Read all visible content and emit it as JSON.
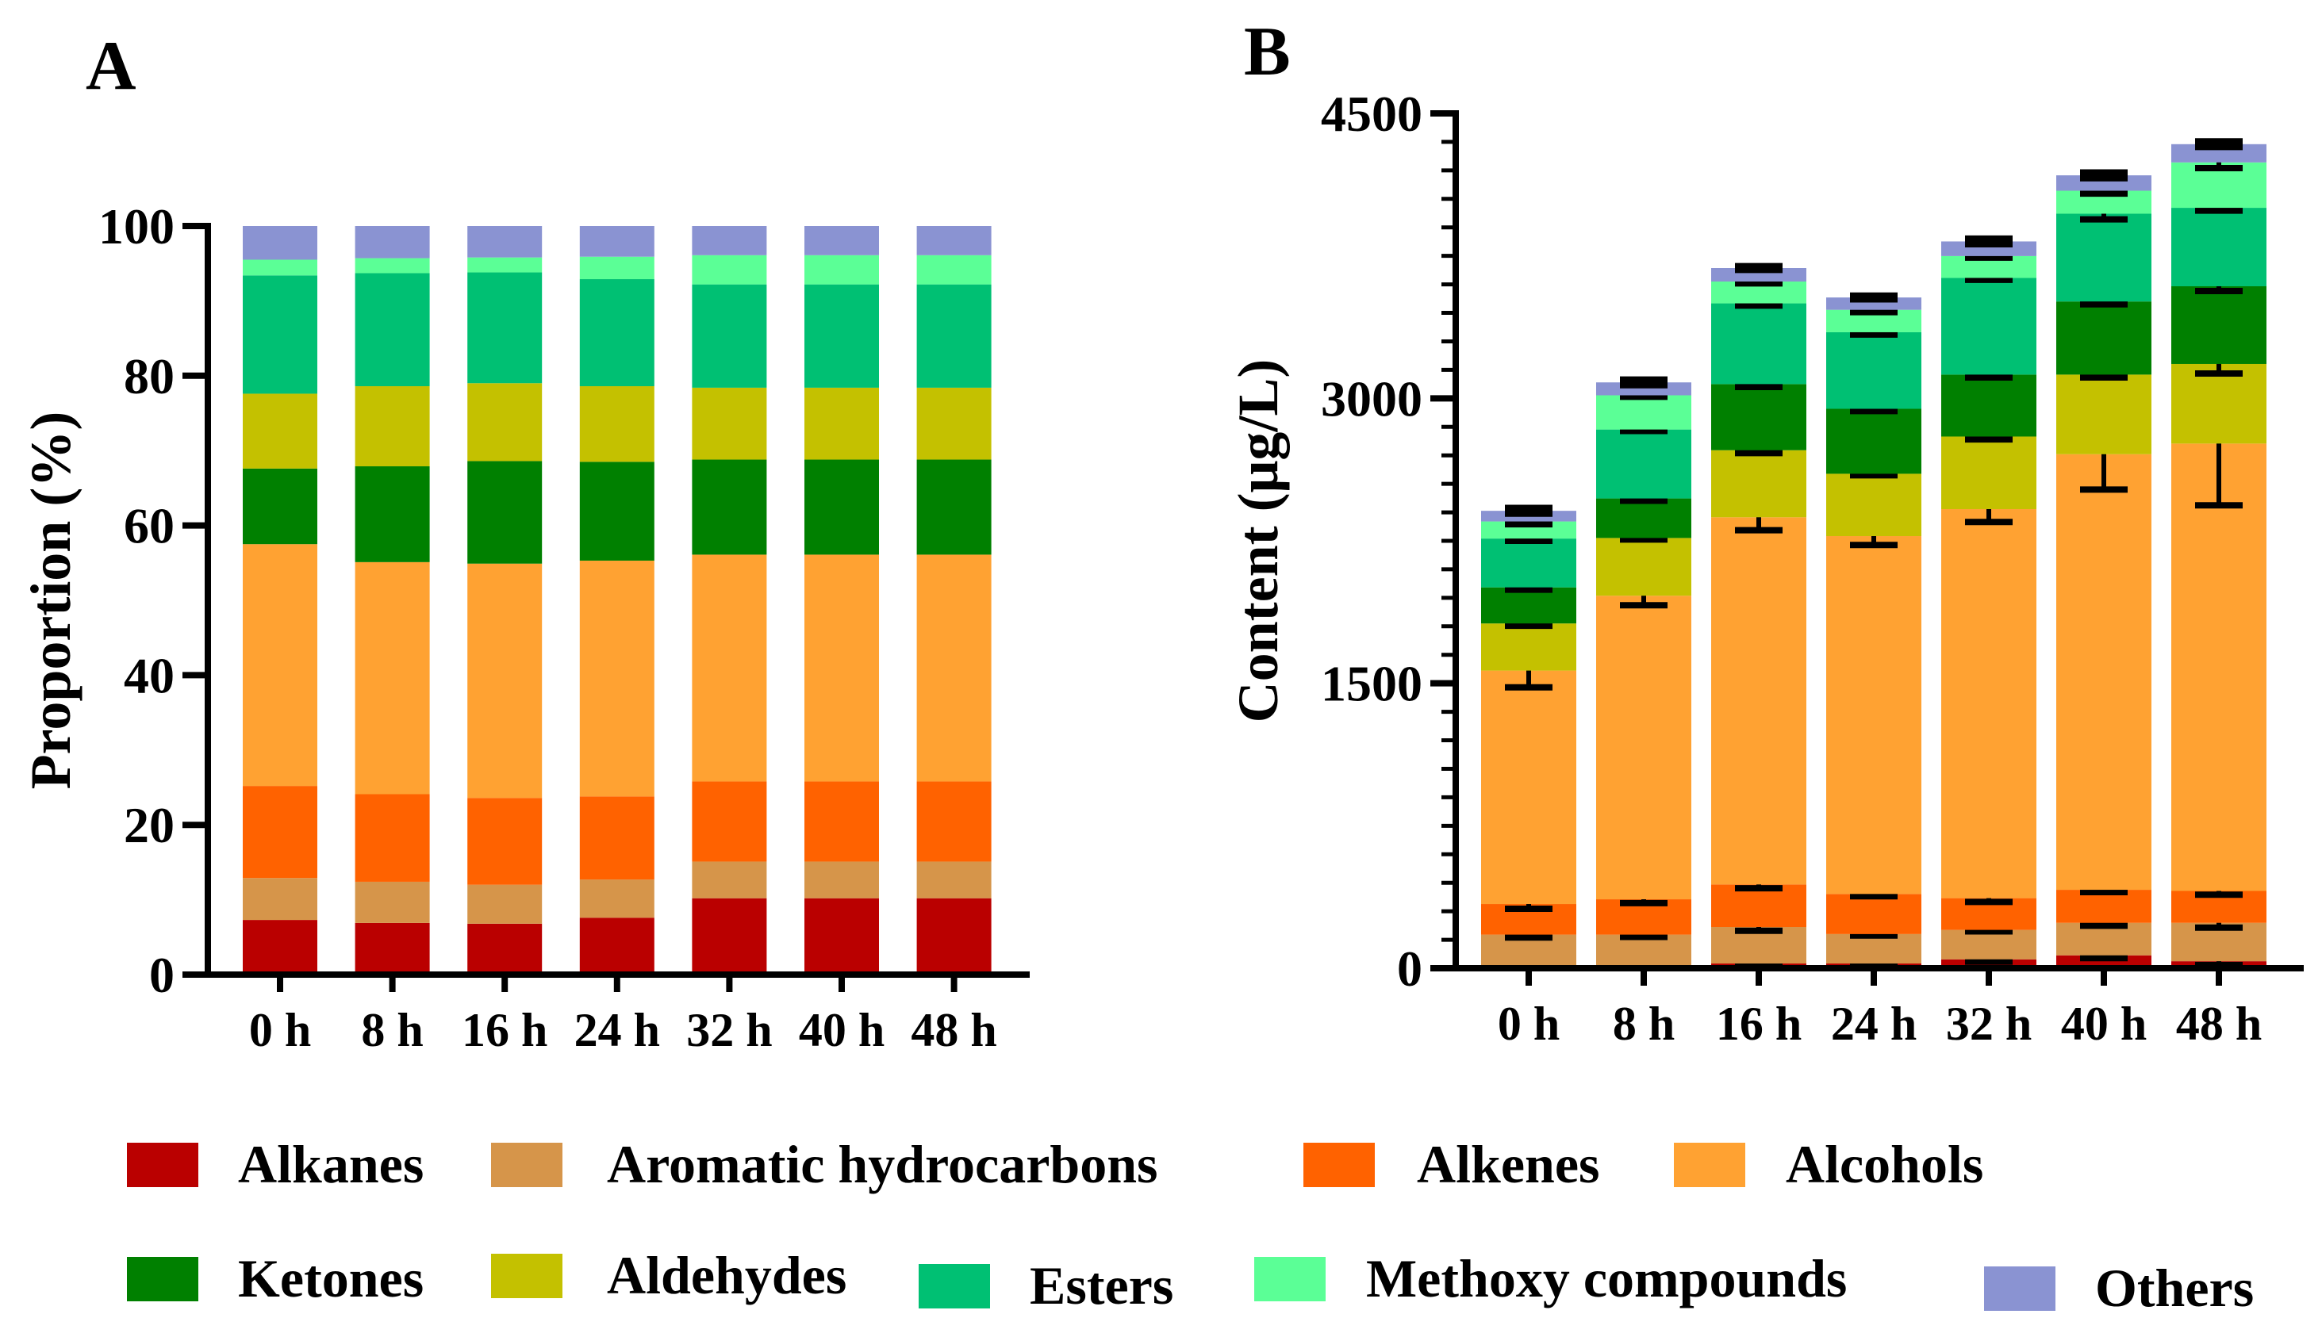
{
  "chart_data": [
    {
      "panel": "A",
      "type": "bar",
      "stacked": true,
      "ylabel": "Proportion (%)",
      "xlabel": "",
      "ylim": [
        0,
        100
      ],
      "yticks": [
        "0",
        "20",
        "40",
        "60",
        "80",
        "100"
      ],
      "categories": [
        "0 h",
        "8 h",
        "16 h",
        "24 h",
        "32 h",
        "40 h",
        "48 h"
      ],
      "series": [
        {
          "name": "Alkanes",
          "color": "#BA0000",
          "values": [
            7.3,
            6.9,
            6.8,
            7.6,
            10.2,
            10.2,
            10.2
          ]
        },
        {
          "name": "Aromatic hydrocarbons",
          "color": "#D6954A",
          "values": [
            5.6,
            5.5,
            5.2,
            5.1,
            4.9,
            4.9,
            4.9
          ]
        },
        {
          "name": "Alkenes",
          "color": "#FF6200",
          "values": [
            12.3,
            11.7,
            11.6,
            11.1,
            10.7,
            10.7,
            10.7
          ]
        },
        {
          "name": "Alcohols",
          "color": "#FFA232",
          "values": [
            32.3,
            31.0,
            31.3,
            31.5,
            30.3,
            30.3,
            30.3
          ]
        },
        {
          "name": "Ketones",
          "color": "#008000",
          "values": [
            10.1,
            12.8,
            13.7,
            13.2,
            12.7,
            12.7,
            12.7
          ]
        },
        {
          "name": "Aldehydes",
          "color": "#C4C100",
          "values": [
            10.0,
            10.7,
            10.4,
            10.1,
            9.6,
            9.6,
            9.6
          ]
        },
        {
          "name": "Esters",
          "color": "#00C073",
          "values": [
            15.8,
            15.1,
            14.8,
            14.3,
            13.8,
            13.8,
            13.8
          ]
        },
        {
          "name": "Methoxy compounds",
          "color": "#5BFF96",
          "values": [
            2.1,
            2.0,
            2.0,
            3.0,
            3.9,
            3.9,
            3.9
          ]
        },
        {
          "name": "Others",
          "color": "#8A93D2",
          "values": [
            4.5,
            4.3,
            4.2,
            4.1,
            3.9,
            3.9,
            3.9
          ]
        }
      ]
    },
    {
      "panel": "B",
      "type": "bar",
      "stacked": true,
      "error_bars": true,
      "ylabel": "Content (μg/L)",
      "xlabel": "",
      "ylim": [
        0,
        4500
      ],
      "yticks": [
        "0",
        "1500",
        "3000",
        "4500"
      ],
      "categories": [
        "0 h",
        "8 h",
        "16 h",
        "24 h",
        "32 h",
        "40 h",
        "48 h"
      ],
      "series": [
        {
          "name": "Alkanes",
          "color": "#BA0000",
          "values": [
            15,
            15,
            25,
            25,
            47,
            68,
            37
          ],
          "errors": [
            12,
            12,
            10,
            10,
            12,
            15,
            20
          ]
        },
        {
          "name": "Aromatic hydrocarbons",
          "color": "#D6954A",
          "values": [
            162,
            162,
            192,
            155,
            155,
            171,
            202
          ],
          "errors": [
            15,
            12,
            20,
            8,
            8,
            15,
            25
          ]
        },
        {
          "name": "Alkenes",
          "color": "#FF6200",
          "values": [
            161,
            186,
            224,
            211,
            167,
            174,
            168
          ],
          "errors": [
            25,
            20,
            20,
            12,
            20,
            12,
            20
          ]
        },
        {
          "name": "Alcohols",
          "color": "#FFA232",
          "values": [
            1229,
            1598,
            1933,
            1884,
            2048,
            2293,
            2355
          ],
          "errors": [
            88,
            50,
            68,
            47,
            68,
            186,
            325
          ]
        },
        {
          "name": "Aldehydes",
          "color": "#C4C100",
          "values": [
            248,
            304,
            353,
            328,
            382,
            419,
            419
          ],
          "errors": [
            12,
            8,
            15,
            8,
            15,
            15,
            50
          ]
        },
        {
          "name": "Ketones",
          "color": "#008000",
          "values": [
            190,
            208,
            348,
            342,
            326,
            385,
            409
          ],
          "errors": [
            12,
            12,
            15,
            12,
            15,
            15,
            25
          ]
        },
        {
          "name": "Esters",
          "color": "#00C073",
          "values": [
            257,
            363,
            425,
            403,
            509,
            462,
            413
          ],
          "errors": [
            12,
            8,
            12,
            12,
            10,
            30,
            15
          ]
        },
        {
          "name": "Methoxy compounds",
          "color": "#5BFF96",
          "values": [
            90,
            180,
            115,
            118,
            115,
            121,
            239
          ],
          "errors": [
            15,
            8,
            10,
            12,
            8,
            15,
            30
          ]
        },
        {
          "name": "Others",
          "color": "#8A93D2",
          "values": [
            56,
            68,
            71,
            65,
            77,
            81,
            96
          ],
          "errors": [
            15,
            15,
            10,
            10,
            15,
            15,
            15
          ]
        }
      ]
    }
  ],
  "panel_labels": {
    "a": "A",
    "b": "B"
  },
  "legend": {
    "items": [
      {
        "label": "Alkanes",
        "color": "#BA0000"
      },
      {
        "label": "Aromatic hydrocarbons",
        "color": "#D6954A"
      },
      {
        "label": "Alkenes",
        "color": "#FF6200"
      },
      {
        "label": "Alcohols",
        "color": "#FFA232"
      },
      {
        "label": "Ketones",
        "color": "#008000"
      },
      {
        "label": "Aldehydes",
        "color": "#C4C100"
      },
      {
        "label": "Esters",
        "color": "#00C073"
      },
      {
        "label": "Methoxy compounds",
        "color": "#5BFF96"
      },
      {
        "label": "Others",
        "color": "#8A93D2"
      }
    ]
  }
}
